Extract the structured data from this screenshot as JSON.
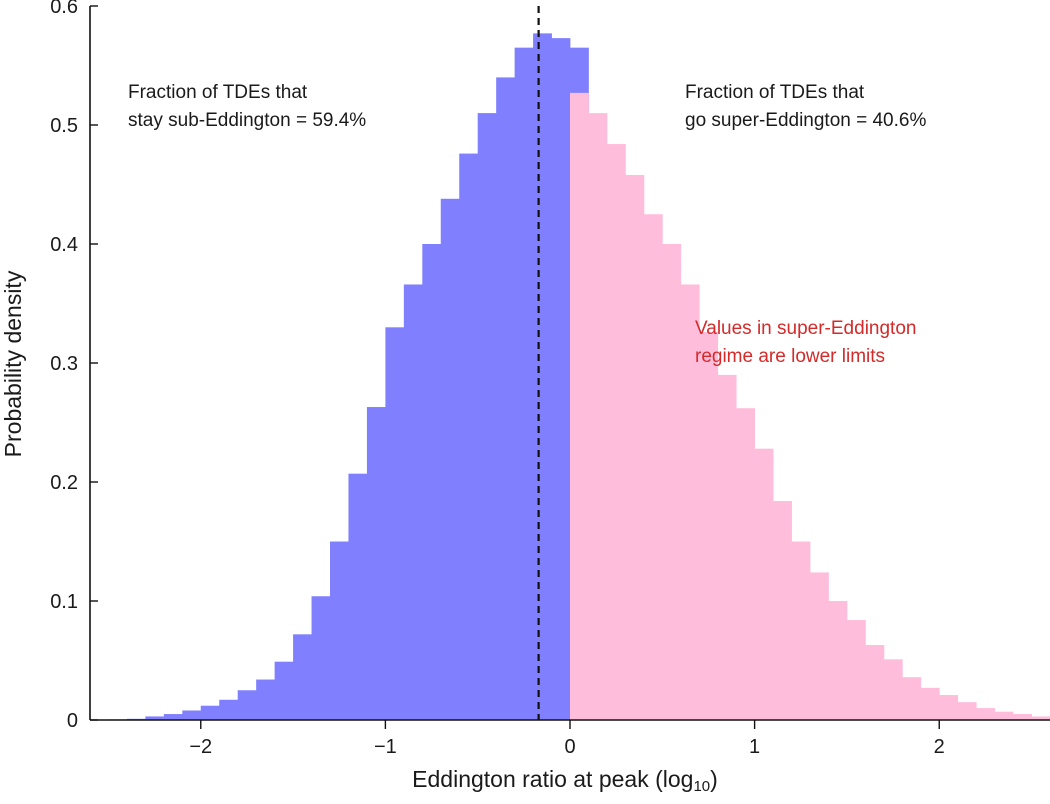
{
  "chart_data": {
    "type": "bar",
    "title": "",
    "xlabel": "Eddington ratio at peak (log",
    "xlabel_sub": "10",
    "xlabel_close": ")",
    "ylabel": "Probability density",
    "xlim": [
      -2.6,
      2.6
    ],
    "ylim": [
      0,
      0.6
    ],
    "xticks": [
      -2,
      -1,
      0,
      1,
      2
    ],
    "xtick_labels": [
      "−2",
      "−1",
      "0",
      "1",
      "2"
    ],
    "yticks": [
      0,
      0.1,
      0.2,
      0.3,
      0.4,
      0.5,
      0.6
    ],
    "ytick_labels": [
      "0",
      "0.1",
      "0.2",
      "0.3",
      "0.4",
      "0.5",
      "0.6"
    ],
    "grid": false,
    "legend": "none",
    "bin_width": 0.1,
    "median_line_x": -0.17,
    "colors": {
      "sub": "#8080ff",
      "super": "#ffbddc",
      "note_red": "#d42a2a"
    },
    "series": [
      {
        "bin_left": [
          -2.5,
          -2.4,
          -2.3,
          -2.2,
          -2.1,
          -2.0,
          -1.9,
          -1.8,
          -1.7,
          -1.6,
          -1.5,
          -1.4,
          -1.3,
          -1.2,
          -1.1,
          -1.0,
          -0.9,
          -0.8,
          -0.7,
          -0.6,
          -0.5,
          -0.4,
          -0.3,
          -0.2,
          -0.1,
          0.0
        ],
        "values": [
          0.0005,
          0.001,
          0.003,
          0.005,
          0.008,
          0.012,
          0.017,
          0.025,
          0.034,
          0.049,
          0.072,
          0.104,
          0.15,
          0.207,
          0.263,
          0.33,
          0.366,
          0.4,
          0.438,
          0.476,
          0.51,
          0.54,
          0.565,
          0.577,
          0.573,
          0.565
        ],
        "color": "#8080ff"
      },
      {
        "bin_left": [
          0.0,
          0.1,
          0.2,
          0.3,
          0.4,
          0.5,
          0.6,
          0.7,
          0.8,
          0.9,
          1.0,
          1.1,
          1.2,
          1.3,
          1.4,
          1.5,
          1.6,
          1.7,
          1.8,
          1.9,
          2.0,
          2.1,
          2.2,
          2.3,
          2.4,
          2.5
        ],
        "values": [
          0.527,
          0.51,
          0.484,
          0.458,
          0.425,
          0.4,
          0.366,
          0.326,
          0.29,
          0.262,
          0.228,
          0.184,
          0.15,
          0.124,
          0.1,
          0.084,
          0.063,
          0.051,
          0.036,
          0.027,
          0.021,
          0.015,
          0.01,
          0.007,
          0.005,
          0.003
        ],
        "color": "#ffbddc"
      }
    ]
  },
  "annotations": {
    "left_line1": "Fraction of TDEs that",
    "left_line2": "stay sub-Eddington = 59.4%",
    "right_line1": "Fraction of TDEs that",
    "right_line2": "go super-Eddington = 40.6%",
    "red_line1": "Values in super-Eddington",
    "red_line2": "regime are lower limits"
  }
}
